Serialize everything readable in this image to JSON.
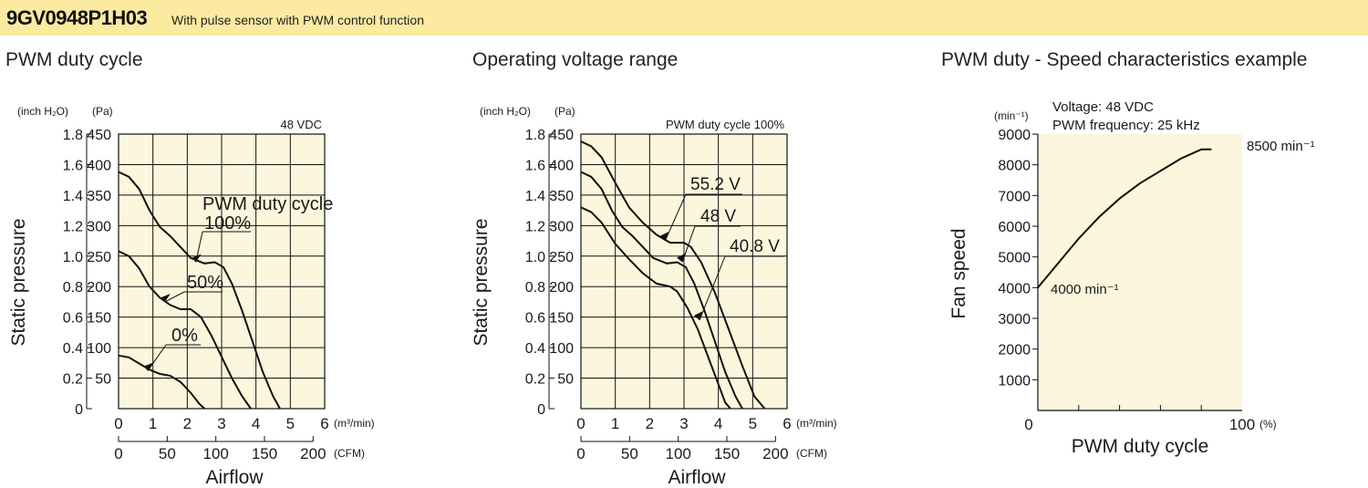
{
  "header": {
    "model": "9GV0948P1H03",
    "description": "With pulse sensor with PWM control function",
    "background": "#fbeaa0"
  },
  "colors": {
    "plot_background": "#fbf6dc",
    "line": "#111111"
  },
  "chart_data": [
    {
      "section_title": "PWM duty cycle",
      "type": "line",
      "annotation": "48 VDC",
      "xlabel": "Airflow",
      "ylabel": "Static pressure",
      "x_unit": "(m³/min)",
      "x2_unit": "(CFM)",
      "y_unit": "(Pa)",
      "y2_unit": "(inch H₂O)",
      "xlim": [
        0,
        6
      ],
      "ylim": [
        0,
        450
      ],
      "x_ticks": [
        "0",
        "1",
        "2",
        "3",
        "4",
        "5",
        "6"
      ],
      "x2_ticks": [
        "0",
        "50",
        "100",
        "150",
        "200"
      ],
      "y_ticks": [
        "",
        "50",
        "100",
        "150",
        "200",
        "250",
        "300",
        "350",
        "400",
        "450"
      ],
      "y2_ticks": [
        "0",
        "0.2",
        "0.4",
        "0.6",
        "0.8",
        "1.0",
        "1.2",
        "1.4",
        "1.6",
        "1.8"
      ],
      "legend_title": "PWM duty cycle",
      "grid": true,
      "series": [
        {
          "name": "100%",
          "points": [
            [
              0,
              388
            ],
            [
              0.3,
              380
            ],
            [
              0.6,
              360
            ],
            [
              0.9,
              325
            ],
            [
              1.2,
              298
            ],
            [
              1.5,
              283
            ],
            [
              1.8,
              265
            ],
            [
              2.1,
              247
            ],
            [
              2.5,
              238
            ],
            [
              2.8,
              240
            ],
            [
              3.05,
              232
            ],
            [
              3.3,
              205
            ],
            [
              3.6,
              160
            ],
            [
              3.9,
              110
            ],
            [
              4.2,
              60
            ],
            [
              4.5,
              20
            ],
            [
              4.7,
              0
            ]
          ]
        },
        {
          "name": "50%",
          "points": [
            [
              0,
              258
            ],
            [
              0.3,
              250
            ],
            [
              0.6,
              230
            ],
            [
              0.9,
              200
            ],
            [
              1.2,
              182
            ],
            [
              1.5,
              170
            ],
            [
              1.8,
              163
            ],
            [
              2.1,
              163
            ],
            [
              2.4,
              150
            ],
            [
              2.7,
              120
            ],
            [
              3.0,
              85
            ],
            [
              3.3,
              50
            ],
            [
              3.6,
              20
            ],
            [
              3.85,
              0
            ]
          ]
        },
        {
          "name": "0%",
          "points": [
            [
              0,
              87
            ],
            [
              0.3,
              84
            ],
            [
              0.6,
              74
            ],
            [
              0.9,
              64
            ],
            [
              1.2,
              57
            ],
            [
              1.5,
              54
            ],
            [
              1.8,
              44
            ],
            [
              2.1,
              26
            ],
            [
              2.35,
              8
            ],
            [
              2.5,
              0
            ]
          ]
        }
      ]
    },
    {
      "section_title": "Operating voltage range",
      "type": "line",
      "annotation": "PWM duty cycle 100%",
      "xlabel": "Airflow",
      "ylabel": "Static pressure",
      "x_unit": "(m³/min)",
      "x2_unit": "(CFM)",
      "y_unit": "(Pa)",
      "y2_unit": "(inch H₂O)",
      "xlim": [
        0,
        6
      ],
      "ylim": [
        0,
        450
      ],
      "x_ticks": [
        "0",
        "1",
        "2",
        "3",
        "4",
        "5",
        "6"
      ],
      "x2_ticks": [
        "0",
        "50",
        "100",
        "150",
        "200"
      ],
      "y_ticks": [
        "",
        "50",
        "100",
        "150",
        "200",
        "250",
        "300",
        "350",
        "400",
        "450"
      ],
      "y2_ticks": [
        "0",
        "0.2",
        "0.4",
        "0.6",
        "0.8",
        "1.0",
        "1.2",
        "1.4",
        "1.6",
        "1.8"
      ],
      "grid": true,
      "series": [
        {
          "name": "55.2 V",
          "points": [
            [
              0,
              438
            ],
            [
              0.3,
              430
            ],
            [
              0.6,
              412
            ],
            [
              1.0,
              370
            ],
            [
              1.4,
              330
            ],
            [
              1.8,
              305
            ],
            [
              2.2,
              285
            ],
            [
              2.6,
              272
            ],
            [
              3.0,
              272
            ],
            [
              3.2,
              265
            ],
            [
              3.5,
              240
            ],
            [
              3.9,
              190
            ],
            [
              4.3,
              130
            ],
            [
              4.7,
              70
            ],
            [
              5.05,
              20
            ],
            [
              5.35,
              0
            ]
          ]
        },
        {
          "name": "48 V",
          "points": [
            [
              0,
              388
            ],
            [
              0.3,
              380
            ],
            [
              0.6,
              360
            ],
            [
              0.9,
              325
            ],
            [
              1.2,
              298
            ],
            [
              1.5,
              283
            ],
            [
              1.8,
              265
            ],
            [
              2.1,
              247
            ],
            [
              2.5,
              238
            ],
            [
              2.8,
              240
            ],
            [
              3.05,
              232
            ],
            [
              3.3,
              205
            ],
            [
              3.6,
              160
            ],
            [
              3.9,
              110
            ],
            [
              4.2,
              60
            ],
            [
              4.5,
              20
            ],
            [
              4.7,
              0
            ]
          ]
        },
        {
          "name": "40.8 V",
          "points": [
            [
              0,
              330
            ],
            [
              0.3,
              322
            ],
            [
              0.6,
              305
            ],
            [
              1.0,
              270
            ],
            [
              1.4,
              245
            ],
            [
              1.8,
              222
            ],
            [
              2.2,
              205
            ],
            [
              2.6,
              200
            ],
            [
              2.8,
              192
            ],
            [
              3.1,
              165
            ],
            [
              3.4,
              130
            ],
            [
              3.7,
              85
            ],
            [
              4.0,
              40
            ],
            [
              4.2,
              10
            ],
            [
              4.35,
              0
            ]
          ]
        }
      ]
    },
    {
      "section_title": "PWM duty - Speed characteristics example",
      "type": "line",
      "annotation_lines": [
        "Voltage: 48 VDC",
        "PWM frequency: 25 kHz"
      ],
      "xlabel": "PWM duty cycle",
      "ylabel": "Fan speed",
      "x_unit": "(%)",
      "y_unit": "(min⁻¹)",
      "xlim": [
        0,
        100
      ],
      "ylim": [
        0,
        9000
      ],
      "x_tick_labels": {
        "0": "0",
        "100": "100"
      },
      "y_ticks": [
        "",
        "1000",
        "2000",
        "3000",
        "4000",
        "5000",
        "6000",
        "7000",
        "8000",
        "9000"
      ],
      "grid": false,
      "start_label": "4000 min⁻¹",
      "end_label": "8500 min⁻¹",
      "series": [
        {
          "points": [
            [
              0,
              4000
            ],
            [
              10,
              4800
            ],
            [
              20,
              5600
            ],
            [
              30,
              6300
            ],
            [
              40,
              6900
            ],
            [
              50,
              7400
            ],
            [
              60,
              7800
            ],
            [
              70,
              8200
            ],
            [
              80,
              8500
            ],
            [
              85,
              8500
            ]
          ]
        }
      ]
    }
  ]
}
